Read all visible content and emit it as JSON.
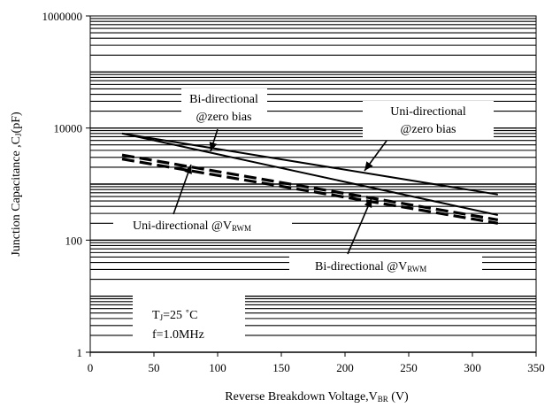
{
  "chart_data": {
    "type": "line",
    "title": "",
    "xlabel": "Reverse Breakdown  Voltage,V",
    "xlabel_sub": "BR",
    "xlabel_unit": " (V)",
    "ylabel": "Junction Capacitance ,C",
    "ylabel_sub": "J",
    "ylabel_unit": "(pF)",
    "x_scale": "linear",
    "y_scale": "log",
    "xlim": [
      0,
      350
    ],
    "ylim": [
      1,
      1000000
    ],
    "x_ticks": [
      0,
      50,
      100,
      150,
      200,
      250,
      300,
      350
    ],
    "y_ticks": [
      {
        "value": 1,
        "label": "1"
      },
      {
        "value": 100,
        "label": "100"
      },
      {
        "value": 10000,
        "label": "10000"
      },
      {
        "value": 1000000,
        "label": "1000000"
      }
    ],
    "grid": true,
    "series": [
      {
        "style": "solid",
        "x": [
          25,
          320
        ],
        "y": [
          8000,
          650
        ]
      },
      {
        "style": "solid",
        "x": [
          25,
          320
        ],
        "y": [
          8000,
          280
        ]
      },
      {
        "style": "dashed",
        "x": [
          25,
          320
        ],
        "y": [
          3300,
          230
        ]
      },
      {
        "style": "dashed",
        "x": [
          25,
          320
        ],
        "y": [
          2800,
          200
        ]
      }
    ],
    "annotations": [
      {
        "id": "bi-zero",
        "lines": [
          "Bi-directional",
          "@zero  bias"
        ]
      },
      {
        "id": "uni-zero",
        "lines": [
          "Uni-directional",
          "@zero  bias"
        ]
      },
      {
        "id": "uni-vrwm",
        "text": "Uni-directional @V",
        "sub": "RWM"
      },
      {
        "id": "bi-vrwm",
        "text": "Bi-directional @V",
        "sub": "RWM"
      },
      {
        "id": "cond",
        "lines": [
          "T",
          "=25  ˚C",
          "f=1.0MHz"
        ],
        "sub": "J"
      }
    ]
  }
}
